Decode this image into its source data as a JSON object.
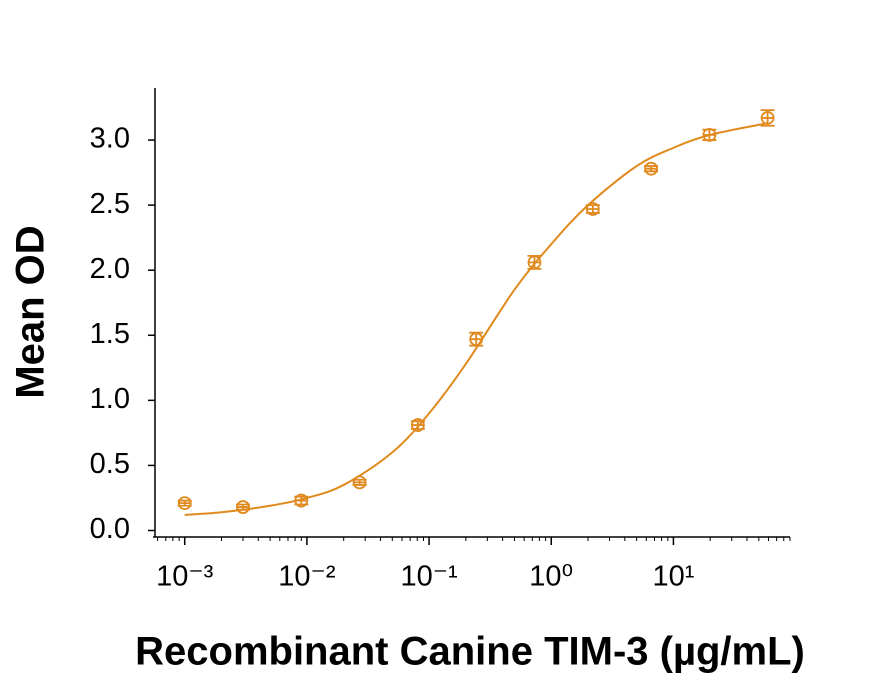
{
  "chart_data": {
    "type": "scatter",
    "xlabel": "Recombinant Canine TIM-3 (µg/mL)",
    "ylabel": "Mean OD",
    "xscale": "log",
    "xlim": [
      0.00055,
      90
    ],
    "ylim": [
      -0.05,
      3.4
    ],
    "xticks": [
      {
        "value": 0.001,
        "label": "10⁻³"
      },
      {
        "value": 0.01,
        "label": "10⁻²"
      },
      {
        "value": 0.1,
        "label": "10⁻¹"
      },
      {
        "value": 1,
        "label": "10⁰"
      },
      {
        "value": 10,
        "label": "10¹"
      }
    ],
    "xminorticks": [
      0.0006,
      0.0007,
      0.0008,
      0.0009,
      0.002,
      0.003,
      0.004,
      0.005,
      0.006,
      0.007,
      0.008,
      0.009,
      0.02,
      0.03,
      0.04,
      0.05,
      0.06,
      0.07,
      0.08,
      0.09,
      0.2,
      0.3,
      0.4,
      0.5,
      0.6,
      0.7,
      0.8,
      0.9,
      2,
      3,
      4,
      5,
      6,
      7,
      8,
      9,
      20,
      30,
      40,
      50,
      60,
      70,
      80,
      90
    ],
    "yticks": [
      {
        "value": 0,
        "label": "0.0"
      },
      0.5,
      {
        "value": 1,
        "label": "1.0"
      },
      1.5,
      {
        "value": 2,
        "label": "2.0"
      },
      2.5,
      {
        "value": 3,
        "label": "3.0"
      }
    ],
    "color": "#e08a1e",
    "x": [
      0.001,
      0.003,
      0.009,
      0.027,
      0.081,
      0.243,
      0.729,
      2.19,
      6.56,
      19.7,
      59
    ],
    "values": [
      0.21,
      0.18,
      0.23,
      0.37,
      0.81,
      1.47,
      2.06,
      2.47,
      2.78,
      3.04,
      3.17
    ],
    "errors": [
      0.02,
      0.02,
      0.03,
      0.02,
      0.03,
      0.05,
      0.05,
      0.03,
      0.02,
      0.04,
      0.06
    ],
    "fit": {
      "x": [
        0.001,
        0.002,
        0.005,
        0.01,
        0.02,
        0.05,
        0.1,
        0.2,
        0.5,
        1,
        2,
        5,
        10,
        20,
        59
      ],
      "values": [
        0.12,
        0.14,
        0.19,
        0.25,
        0.35,
        0.6,
        0.9,
        1.28,
        1.85,
        2.2,
        2.5,
        2.8,
        2.94,
        3.04,
        3.13
      ]
    }
  }
}
